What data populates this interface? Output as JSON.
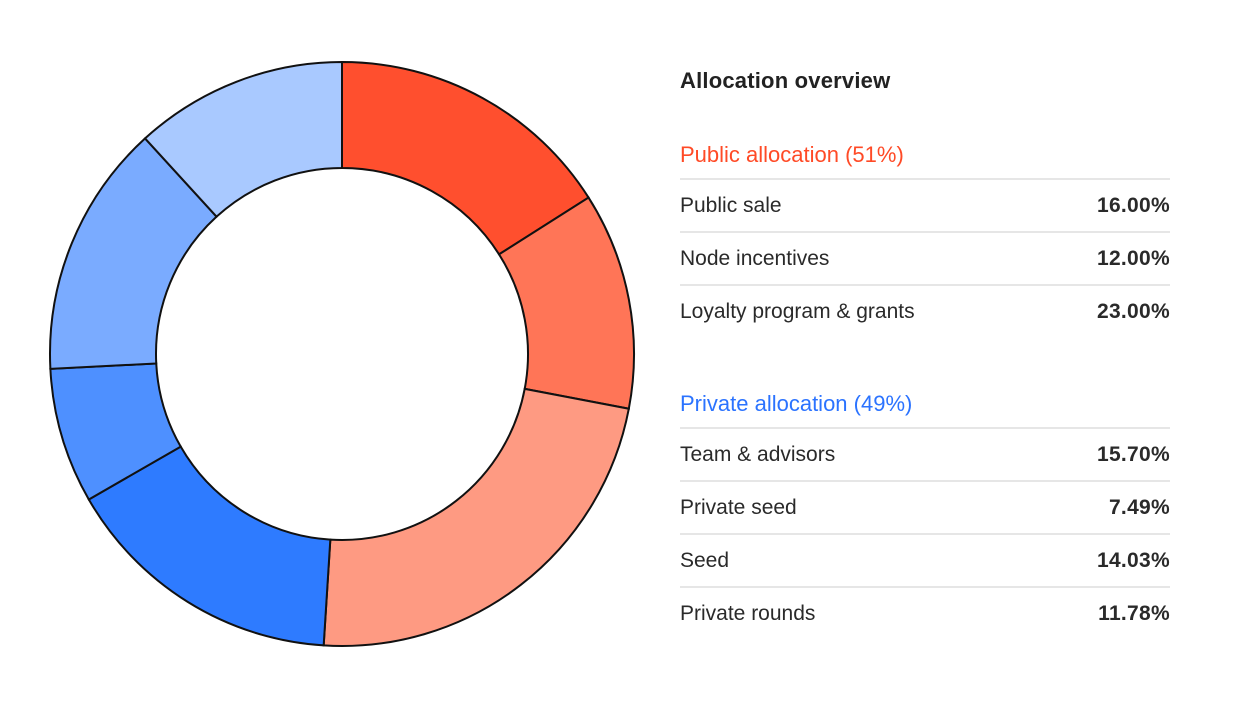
{
  "chart_data": {
    "type": "pie",
    "variant": "donut",
    "title": "Allocation overview",
    "groups": [
      {
        "name": "Public allocation (51%)",
        "color": "#ff4a26",
        "items": [
          {
            "label": "Public sale",
            "value": 16.0,
            "display": "16.00%",
            "color": "#ff4f2e"
          },
          {
            "label": "Node incentives",
            "value": 12.0,
            "display": "12.00%",
            "color": "#ff7557"
          },
          {
            "label": "Loyalty program & grants",
            "value": 23.0,
            "display": "23.00%",
            "color": "#fe9a82"
          }
        ]
      },
      {
        "name": "Private allocation (49%)",
        "color": "#2b73ff",
        "items": [
          {
            "label": "Team & advisors",
            "value": 15.7,
            "display": "15.70%",
            "color": "#2e7bff"
          },
          {
            "label": "Private seed",
            "value": 7.49,
            "display": "7.49%",
            "color": "#4e90ff"
          },
          {
            "label": "Seed",
            "value": 14.03,
            "display": "14.03%",
            "color": "#7aabff"
          },
          {
            "label": "Private rounds",
            "value": 11.78,
            "display": "11.78%",
            "color": "#a9c9ff"
          }
        ]
      }
    ]
  }
}
